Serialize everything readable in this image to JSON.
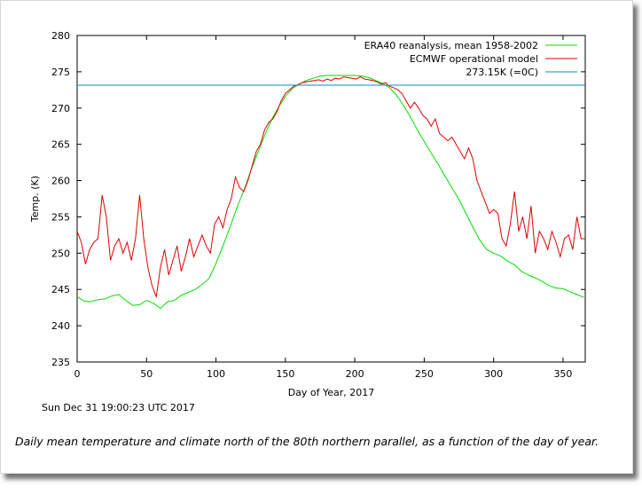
{
  "chart_data": {
    "type": "line",
    "title": "",
    "xlabel": "Day of Year, 2017",
    "ylabel": "Temp. (K)",
    "xlim": [
      0,
      366
    ],
    "ylim": [
      235,
      280
    ],
    "xticks": [
      0,
      50,
      100,
      150,
      200,
      250,
      300,
      350
    ],
    "yticks": [
      235,
      240,
      245,
      250,
      255,
      260,
      265,
      270,
      275,
      280
    ],
    "grid": false,
    "legend_position": "top-right",
    "series": [
      {
        "name": "ERA40 reanalysis, mean 1958-2002",
        "color": "#00e000",
        "x": [
          0,
          5,
          10,
          15,
          20,
          25,
          30,
          35,
          40,
          45,
          50,
          55,
          60,
          65,
          70,
          75,
          80,
          85,
          90,
          95,
          100,
          105,
          110,
          115,
          120,
          125,
          130,
          135,
          140,
          145,
          150,
          155,
          160,
          165,
          170,
          175,
          180,
          185,
          190,
          195,
          200,
          205,
          210,
          215,
          220,
          225,
          230,
          235,
          240,
          245,
          250,
          255,
          260,
          265,
          270,
          275,
          280,
          285,
          290,
          295,
          300,
          305,
          310,
          315,
          320,
          325,
          330,
          335,
          340,
          345,
          350,
          355,
          360,
          365
        ],
        "y": [
          244.0,
          243.4,
          243.3,
          243.6,
          243.7,
          244.1,
          244.3,
          243.5,
          242.8,
          242.9,
          243.5,
          243.1,
          242.4,
          243.3,
          243.5,
          244.2,
          244.6,
          245.0,
          245.7,
          246.5,
          248.6,
          251.0,
          253.5,
          256.2,
          258.6,
          261.3,
          263.8,
          266.2,
          268.4,
          270.1,
          271.6,
          272.7,
          273.3,
          273.8,
          274.1,
          274.4,
          274.5,
          274.5,
          274.5,
          274.5,
          274.5,
          274.4,
          274.2,
          273.8,
          273.4,
          272.8,
          271.8,
          270.4,
          268.8,
          267.0,
          265.4,
          263.8,
          262.3,
          260.6,
          259.0,
          257.4,
          255.5,
          253.6,
          251.8,
          250.5,
          250.0,
          249.6,
          248.9,
          248.4,
          247.5,
          247.0,
          246.6,
          246.1,
          245.5,
          245.2,
          245.1,
          244.7,
          244.3,
          243.9
        ]
      },
      {
        "name": "ECMWF operational model",
        "color": "#e00000",
        "x": [
          0,
          3,
          6,
          9,
          12,
          15,
          18,
          21,
          24,
          27,
          30,
          33,
          36,
          39,
          42,
          45,
          48,
          51,
          54,
          57,
          60,
          63,
          66,
          69,
          72,
          75,
          78,
          81,
          84,
          87,
          90,
          93,
          96,
          99,
          102,
          105,
          108,
          111,
          114,
          117,
          120,
          123,
          126,
          129,
          132,
          135,
          138,
          141,
          144,
          147,
          150,
          153,
          156,
          159,
          162,
          165,
          168,
          171,
          174,
          177,
          180,
          183,
          186,
          189,
          192,
          195,
          198,
          201,
          204,
          207,
          210,
          213,
          216,
          219,
          222,
          225,
          228,
          231,
          234,
          237,
          240,
          243,
          246,
          249,
          252,
          255,
          258,
          261,
          264,
          267,
          270,
          273,
          276,
          279,
          282,
          285,
          288,
          291,
          294,
          297,
          300,
          303,
          306,
          309,
          312,
          315,
          318,
          321,
          324,
          327,
          330,
          333,
          336,
          339,
          342,
          345,
          348,
          351,
          354,
          357,
          360,
          363,
          366
        ],
        "y": [
          253.0,
          251.5,
          248.5,
          250.5,
          251.5,
          252.0,
          258.0,
          255.0,
          249.0,
          251.0,
          252.0,
          250.0,
          251.5,
          249.0,
          252.0,
          258.0,
          252.0,
          248.0,
          245.5,
          244.0,
          248.0,
          250.5,
          247.0,
          249.0,
          251.0,
          247.5,
          249.5,
          252.0,
          249.5,
          251.0,
          252.5,
          251.0,
          250.0,
          254.0,
          255.0,
          253.5,
          256.0,
          257.5,
          260.5,
          259.0,
          258.5,
          260.0,
          262.0,
          264.0,
          265.0,
          267.0,
          268.0,
          268.5,
          269.5,
          271.0,
          272.0,
          272.5,
          273.0,
          273.2,
          273.5,
          273.6,
          273.7,
          273.8,
          273.9,
          273.7,
          274.0,
          273.8,
          274.1,
          274.0,
          274.3,
          274.2,
          274.1,
          274.0,
          274.3,
          274.0,
          273.9,
          273.8,
          273.6,
          273.3,
          273.5,
          273.0,
          272.8,
          272.5,
          272.0,
          271.0,
          270.0,
          270.8,
          270.0,
          269.0,
          268.5,
          267.5,
          268.5,
          266.5,
          266.0,
          265.5,
          266.0,
          265.0,
          264.0,
          263.0,
          264.5,
          263.0,
          260.0,
          258.5,
          257.0,
          255.5,
          256.0,
          255.5,
          252.0,
          251.0,
          254.0,
          258.5,
          253.0,
          255.0,
          252.0,
          256.5,
          250.0,
          253.0,
          252.0,
          250.5,
          253.0,
          251.5,
          249.5,
          252.0,
          252.5,
          250.5,
          255.0,
          252.0,
          252.0
        ]
      },
      {
        "name": "273.15K (=0C)",
        "color": "#0090c0",
        "x": [
          0,
          366
        ],
        "y": [
          273.15,
          273.15
        ]
      }
    ]
  },
  "timestamp": "Sun Dec 31 19:00:23 UTC 2017",
  "caption": "Daily mean temperature and climate north of the 80th northern parallel, as a function of the day of year."
}
